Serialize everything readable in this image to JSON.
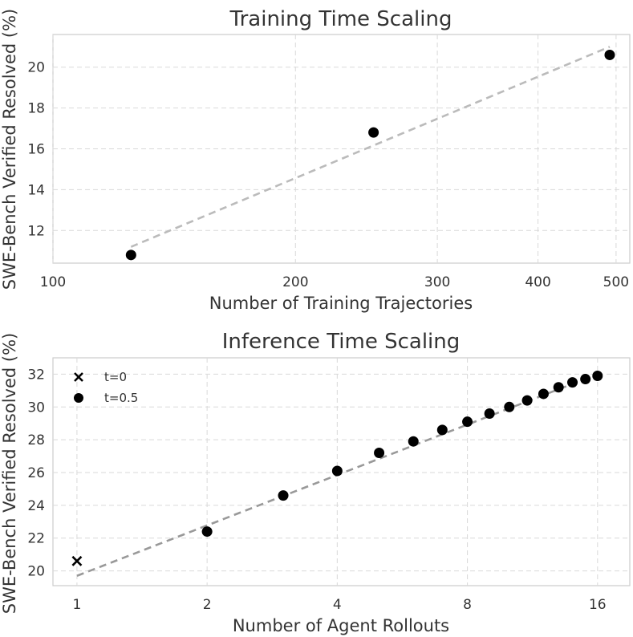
{
  "chart_data": [
    {
      "type": "scatter",
      "title": "Training Time Scaling",
      "xlabel": "Number of Training Trajectories",
      "ylabel": "SWE-Bench Verified Resolved (%)",
      "xscale": "log",
      "xlim": [
        100,
        520
      ],
      "ylim": [
        10.4,
        21.6
      ],
      "xticks": [
        100,
        200,
        300,
        400,
        500
      ],
      "xtick_labels": [
        "100",
        "200",
        "300",
        "400",
        "500"
      ],
      "yticks": [
        12,
        14,
        16,
        18,
        20
      ],
      "ytick_labels": [
        "12",
        "14",
        "16",
        "18",
        "20"
      ],
      "grid": true,
      "series": [
        {
          "marker": "circle",
          "x": [
            125,
            250,
            491
          ],
          "y": [
            10.8,
            16.8,
            20.6
          ]
        }
      ],
      "trend_line": {
        "style": "dashed",
        "color": "#bbbbbb",
        "x": [
          125,
          491
        ],
        "y": [
          11.2,
          21.0
        ]
      }
    },
    {
      "type": "scatter",
      "title": "Inference Time Scaling",
      "xlabel": "Number of Agent Rollouts",
      "ylabel": "SWE-Bench Verified Resolved (%)",
      "xscale": "log",
      "xlim": [
        0.88,
        19
      ],
      "ylim": [
        19.1,
        33.0
      ],
      "xticks": [
        1,
        2,
        4,
        8,
        16
      ],
      "xtick_labels": [
        "1",
        "2",
        "4",
        "8",
        "16"
      ],
      "yticks": [
        20,
        22,
        24,
        26,
        28,
        30,
        32
      ],
      "ytick_labels": [
        "20",
        "22",
        "24",
        "26",
        "28",
        "30",
        "32"
      ],
      "grid": true,
      "legend_position": "top-left",
      "series": [
        {
          "name": "t=0",
          "marker": "x",
          "x": [
            1
          ],
          "y": [
            20.6
          ]
        },
        {
          "name": "t=0.5",
          "marker": "circle",
          "x": [
            2,
            3,
            4,
            5,
            6,
            7,
            8,
            9,
            10,
            11,
            12,
            13,
            14,
            15,
            16
          ],
          "y": [
            22.4,
            24.6,
            26.1,
            27.2,
            27.9,
            28.6,
            29.1,
            29.6,
            30.0,
            30.4,
            30.8,
            31.2,
            31.5,
            31.7,
            31.9
          ]
        }
      ],
      "trend_line": {
        "style": "dashed",
        "color": "#999999",
        "x": [
          1,
          16
        ],
        "y": [
          19.7,
          32.0
        ]
      }
    }
  ]
}
